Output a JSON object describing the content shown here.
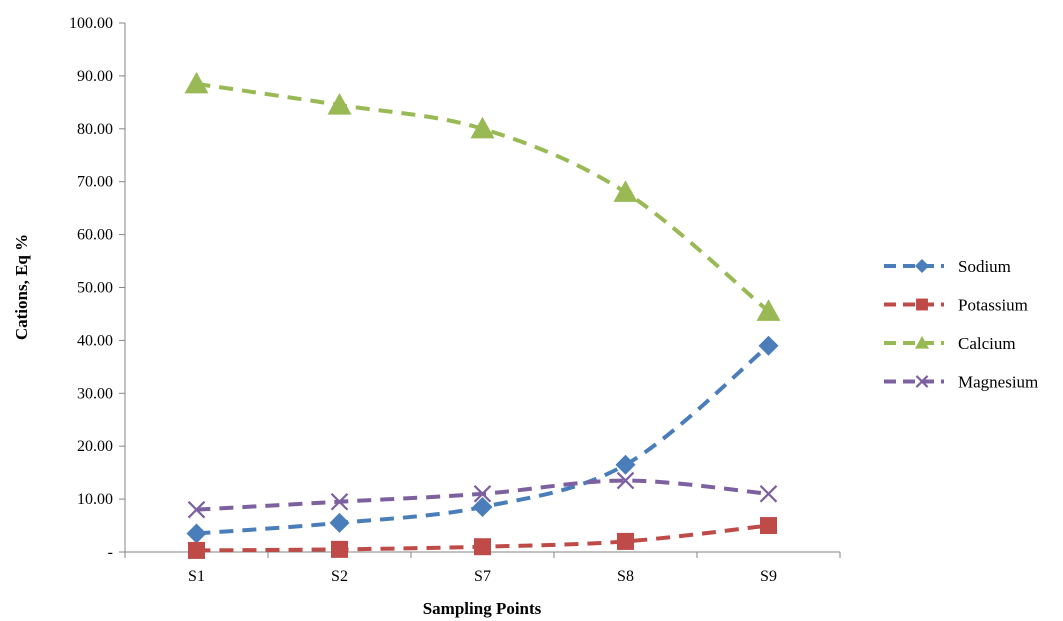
{
  "chart_data": {
    "type": "line",
    "categories": [
      "S1",
      "S2",
      "S7",
      "S8",
      "S9"
    ],
    "xlabel": "Sampling Points",
    "ylabel": "Cations, Eq %",
    "ylim": [
      0,
      100
    ],
    "y_ticks": [
      "-",
      "10.00",
      "20.00",
      "30.00",
      "40.00",
      "50.00",
      "60.00",
      "70.00",
      "80.00",
      "90.00",
      "100.00"
    ],
    "grid": false,
    "legend_position": "right",
    "series": [
      {
        "name": "Sodium",
        "color": "#4a7ebb",
        "marker": "diamond",
        "line": "dashed",
        "values": [
          3.5,
          5.5,
          8.5,
          16.5,
          39.0
        ]
      },
      {
        "name": "Potassium",
        "color": "#be4b48",
        "marker": "square",
        "line": "dashed",
        "values": [
          0.3,
          0.5,
          1.0,
          2.0,
          5.0
        ]
      },
      {
        "name": "Calcium",
        "color": "#98b954",
        "marker": "triangle",
        "line": "dashed",
        "values": [
          88.5,
          84.5,
          80.0,
          68.0,
          45.5
        ]
      },
      {
        "name": "Magnesium",
        "color": "#7d60a0",
        "marker": "x",
        "line": "dashed",
        "values": [
          8.0,
          9.5,
          11.0,
          13.5,
          11.0
        ]
      }
    ]
  }
}
